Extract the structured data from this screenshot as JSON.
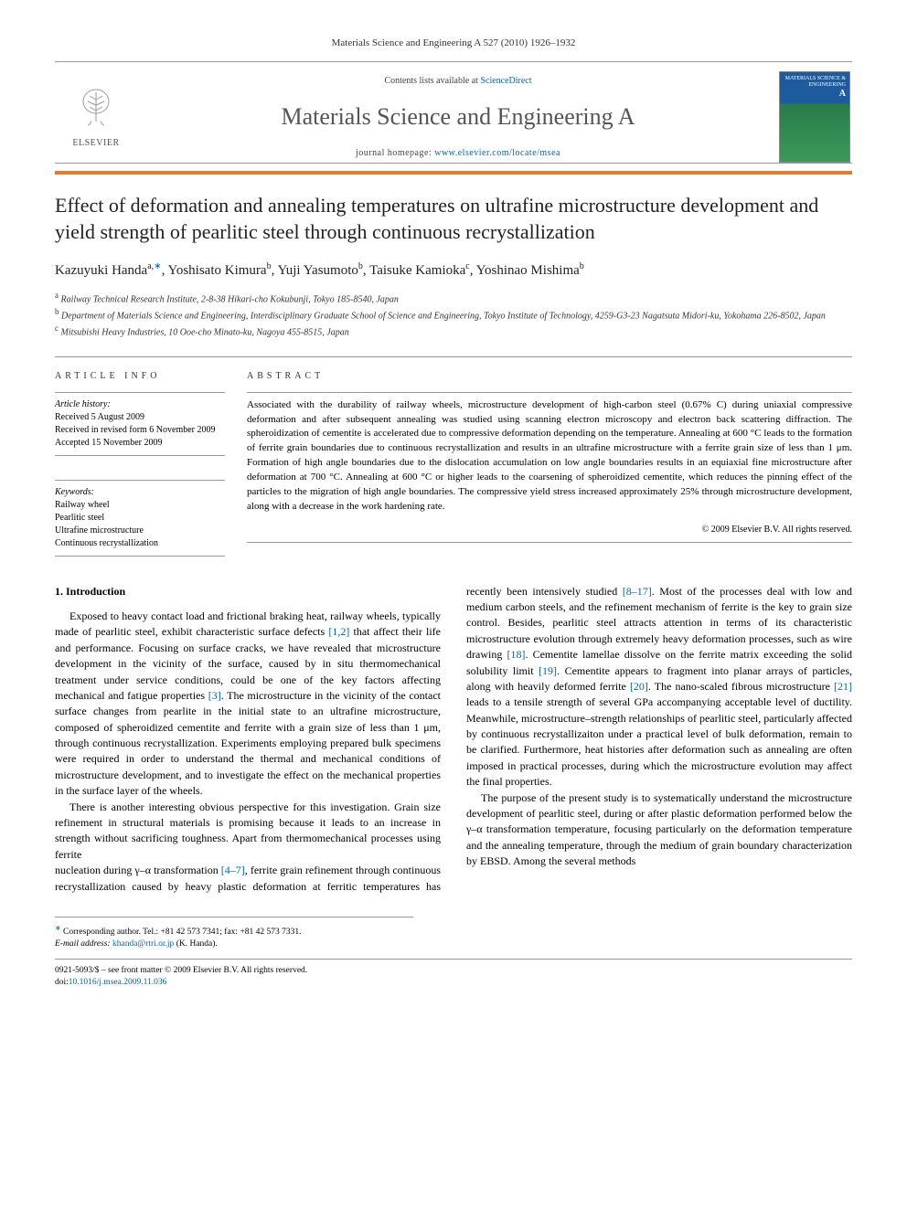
{
  "header": {
    "citation": "Materials Science and Engineering A 527 (2010) 1926–1932"
  },
  "banner": {
    "publisher": "ELSEVIER",
    "contents_prefix": "Contents lists available at ",
    "contents_link": "ScienceDirect",
    "journal_title": "Materials Science and Engineering A",
    "homepage_prefix": "journal homepage: ",
    "homepage_url": "www.elsevier.com/locate/msea",
    "cover_title": "MATERIALS SCIENCE & ENGINEERING",
    "cover_sub": "A"
  },
  "article": {
    "title": "Effect of deformation and annealing temperatures on ultrafine microstructure development and yield strength of pearlitic steel through continuous recrystallization",
    "authors_html": "Kazuyuki Handa<sup>a,</sup><sup class='corr'>∗</sup>, Yoshisato Kimura<sup>b</sup>, Yuji Yasumoto<sup>b</sup>, Taisuke Kamioka<sup>c</sup>, Yoshinao Mishima<sup>b</sup>",
    "affiliations": [
      {
        "sup": "a",
        "text": "Railway Technical Research Institute, 2-8-38 Hikari-cho Kokubunji, Tokyo 185-8540, Japan"
      },
      {
        "sup": "b",
        "text": "Department of Materials Science and Engineering, Interdisciplinary Graduate School of Science and Engineering, Tokyo Institute of Technology, 4259-G3-23 Nagatsuta Midori-ku, Yokohama 226-8502, Japan"
      },
      {
        "sup": "c",
        "text": "Mitsubishi Heavy Industries, 10 Ooe-cho Minato-ku, Nagoya 455-8515, Japan"
      }
    ]
  },
  "info": {
    "heading": "article info",
    "history_label": "Article history:",
    "history": [
      "Received 5 August 2009",
      "Received in revised form 6 November 2009",
      "Accepted 15 November 2009"
    ],
    "keywords_label": "Keywords:",
    "keywords": [
      "Railway wheel",
      "Pearlitic steel",
      "Ultrafine microstructure",
      "Continuous recrystallization"
    ]
  },
  "abstract": {
    "heading": "abstract",
    "text": "Associated with the durability of railway wheels, microstructure development of high-carbon steel (0.67% C) during uniaxial compressive deformation and after subsequent annealing was studied using scanning electron microscopy and electron back scattering diffraction. The spheroidization of cementite is accelerated due to compressive deformation depending on the temperature. Annealing at 600 °C leads to the formation of ferrite grain boundaries due to continuous recrystallization and results in an ultrafine microstructure with a ferrite grain size of less than 1 μm. Formation of high angle boundaries due to the dislocation accumulation on low angle boundaries results in an equiaxial fine microstructure after deformation at 700 °C. Annealing at 600 °C or higher leads to the coarsening of spheroidized cementite, which reduces the pinning effect of the particles to the migration of high angle boundaries. The compressive yield stress increased approximately 25% through microstructure development, along with a decrease in the work hardening rate.",
    "copyright": "© 2009 Elsevier B.V. All rights reserved."
  },
  "body": {
    "section_heading": "1. Introduction",
    "p1": "Exposed to heavy contact load and frictional braking heat, railway wheels, typically made of pearlitic steel, exhibit characteristic surface defects [1,2] that affect their life and performance. Focusing on surface cracks, we have revealed that microstructure development in the vicinity of the surface, caused by in situ thermomechanical treatment under service conditions, could be one of the key factors affecting mechanical and fatigue properties [3]. The microstructure in the vicinity of the contact surface changes from pearlite in the initial state to an ultrafine microstructure, composed of spheroidized cementite and ferrite with a grain size of less than 1 μm, through continuous recrystallization. Experiments employing prepared bulk specimens were required in order to understand the thermal and mechanical conditions of microstructure development, and to investigate the effect on the mechanical properties in the surface layer of the wheels.",
    "p2": "There is another interesting obvious perspective for this investigation. Grain size refinement in structural materials is promising because it leads to an increase in strength without sacrificing toughness. Apart from thermomechanical processes using ferrite",
    "p3": "nucleation during γ–α transformation [4–7], ferrite grain refinement through continuous recrystallization caused by heavy plastic deformation at ferritic temperatures has recently been intensively studied [8–17]. Most of the processes deal with low and medium carbon steels, and the refinement mechanism of ferrite is the key to grain size control. Besides, pearlitic steel attracts attention in terms of its characteristic microstructure evolution through extremely heavy deformation processes, such as wire drawing [18]. Cementite lamellae dissolve on the ferrite matrix exceeding the solid solubility limit [19]. Cementite appears to fragment into planar arrays of particles, along with heavily deformed ferrite [20]. The nano-scaled fibrous microstructure [21] leads to a tensile strength of several GPa accompanying acceptable level of ductility. Meanwhile, microstructure–strength relationships of pearlitic steel, particularly affected by continuous recrystallizaiton under a practical level of bulk deformation, remain to be clarified. Furthermore, heat histories after deformation such as annealing are often imposed in practical processes, during which the microstructure evolution may affect the final properties.",
    "p4": "The purpose of the present study is to systematically understand the microstructure development of pearlitic steel, during or after plastic deformation performed below the γ–α transformation temperature, focusing particularly on the deformation temperature and the annealing temperature, through the medium of grain boundary characterization by EBSD. Among the several methods"
  },
  "footer": {
    "corr_symbol": "∗",
    "corr_text": "Corresponding author. Tel.: +81 42 573 7341; fax: +81 42 573 7331.",
    "email_label": "E-mail address:",
    "email": "khanda@rtri.or.jp",
    "email_name": "(K. Handa).",
    "issn_line": "0921-5093/$ – see front matter © 2009 Elsevier B.V. All rights reserved.",
    "doi_label": "doi:",
    "doi": "10.1016/j.msea.2009.11.036"
  },
  "colors": {
    "orange_bar": "#e67a2e",
    "link": "#0066aa",
    "rule": "#999999",
    "text": "#000000",
    "journal_title": "#555555"
  }
}
